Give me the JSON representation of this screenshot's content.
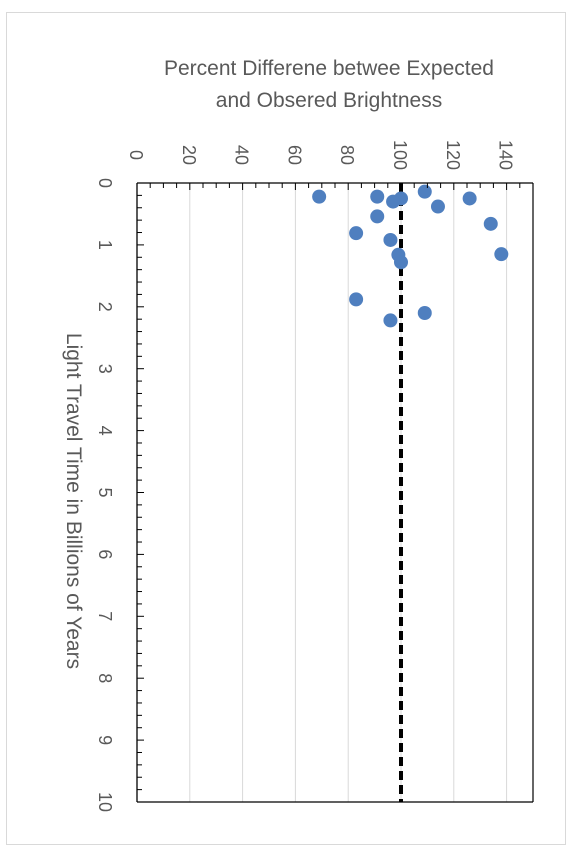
{
  "chart_data": {
    "type": "scatter",
    "title_lines": [
      "Percent Differene betwee Expected",
      "and Obsered Brightness"
    ],
    "xlabel": "Light Travel Time in Billions of Years",
    "ylabel": "",
    "xlim": [
      0,
      10
    ],
    "ylim": [
      0,
      150
    ],
    "x_ticks": [
      0,
      1,
      2,
      3,
      4,
      5,
      6,
      7,
      8,
      9,
      10
    ],
    "y_ticks": [
      0,
      20,
      40,
      60,
      80,
      100,
      120,
      140
    ],
    "grid": true,
    "rotation": "rotated 90 degrees clockwise",
    "marker_color": "#4f7fbf",
    "reference_line": {
      "y": 100,
      "style": "dashed",
      "color": "#000000"
    },
    "series": [
      {
        "points": [
          {
            "x": 0.14,
            "y": 109
          },
          {
            "x": 0.22,
            "y": 69
          },
          {
            "x": 0.22,
            "y": 91
          },
          {
            "x": 0.25,
            "y": 126
          },
          {
            "x": 0.25,
            "y": 100
          },
          {
            "x": 0.3,
            "y": 97
          },
          {
            "x": 0.38,
            "y": 114
          },
          {
            "x": 0.54,
            "y": 91
          },
          {
            "x": 0.66,
            "y": 134
          },
          {
            "x": 0.81,
            "y": 83
          },
          {
            "x": 0.92,
            "y": 96
          },
          {
            "x": 1.16,
            "y": 99
          },
          {
            "x": 1.15,
            "y": 138
          },
          {
            "x": 1.28,
            "y": 100
          },
          {
            "x": 1.88,
            "y": 83
          },
          {
            "x": 2.1,
            "y": 109
          },
          {
            "x": 2.22,
            "y": 96
          }
        ]
      }
    ]
  }
}
